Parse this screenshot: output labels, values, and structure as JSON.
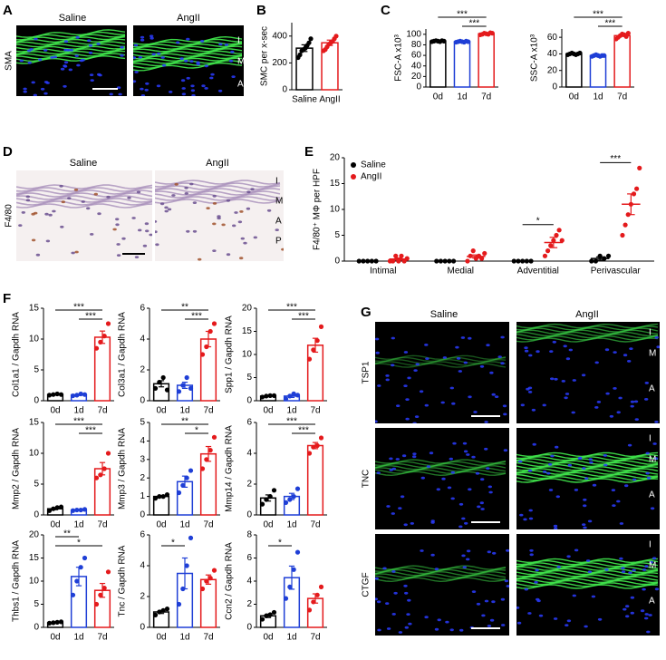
{
  "panel_letters": [
    "A",
    "B",
    "C",
    "D",
    "E",
    "F",
    "G"
  ],
  "images": {
    "A": {
      "columns": [
        "Saline",
        "AngII"
      ],
      "rows": [
        "SMA"
      ],
      "layers": [
        "I",
        "M",
        "A"
      ]
    },
    "D": {
      "columns": [
        "Saline",
        "AngII"
      ],
      "rows": [
        "F4/80"
      ],
      "layers": [
        "I",
        "M",
        "A",
        "P"
      ]
    },
    "G": {
      "columns": [
        "Saline",
        "AngII"
      ],
      "rows": [
        "TSP1",
        "TNC",
        "CTGF"
      ],
      "layers": [
        "I",
        "M",
        "A"
      ]
    }
  },
  "chart_data": [
    {
      "type": "bar",
      "ylabel": "SMC per x-sec",
      "categories": [
        "Saline",
        "AngII"
      ],
      "colors": [
        "#000000",
        "#e41a1c"
      ],
      "values": [
        310,
        350
      ],
      "errors": [
        25,
        20
      ],
      "points": [
        [
          240,
          260,
          290,
          300,
          310,
          330,
          350,
          380
        ],
        [
          290,
          300,
          320,
          340,
          350,
          360,
          380,
          400
        ]
      ],
      "ylim": [
        0,
        500
      ],
      "yticks": [
        0,
        200,
        400
      ],
      "significance": []
    },
    {
      "type": "bar",
      "ylabel": "FSC-A x10³",
      "categories": [
        "0d",
        "1d",
        "7d"
      ],
      "colors": [
        "#000000",
        "#1f3fd6",
        "#e41a1c"
      ],
      "values": [
        87,
        86,
        101
      ],
      "errors": [
        0.5,
        0.4,
        0.6
      ],
      "points": [
        [
          86,
          87,
          88,
          87,
          86,
          88,
          87
        ],
        [
          85,
          86,
          87,
          86,
          85,
          87,
          86
        ],
        [
          99,
          100,
          102,
          101,
          100,
          103,
          102
        ]
      ],
      "ylim": [
        0,
        110
      ],
      "yticks": [
        0,
        20,
        40,
        60,
        80,
        100
      ],
      "significance": [
        {
          "from": "1d",
          "to": "7d",
          "label": "***"
        },
        {
          "from": "0d",
          "to": "7d",
          "label": "***"
        }
      ]
    },
    {
      "type": "bar",
      "ylabel": "SSC-A x10³",
      "categories": [
        "0d",
        "1d",
        "7d"
      ],
      "colors": [
        "#000000",
        "#1f3fd6",
        "#e41a1c"
      ],
      "values": [
        40,
        38,
        62
      ],
      "errors": [
        0.3,
        0.3,
        0.9
      ],
      "points": [
        [
          39,
          40,
          41,
          40,
          39,
          40,
          41
        ],
        [
          37,
          38,
          39,
          38,
          37,
          38,
          38
        ],
        [
          58,
          60,
          62,
          64,
          63,
          61,
          65
        ]
      ],
      "ylim": [
        0,
        70
      ],
      "yticks": [
        0,
        20,
        40,
        60
      ],
      "significance": [
        {
          "from": "1d",
          "to": "7d",
          "label": "***"
        },
        {
          "from": "0d",
          "to": "7d",
          "label": "***"
        }
      ]
    },
    {
      "type": "dot",
      "ylabel": "F4/80⁺ MΦ per HPF",
      "categories": [
        "Intimal",
        "Medial",
        "Adventitial",
        "Perivascular"
      ],
      "series": [
        {
          "name": "Saline",
          "color": "#000000",
          "values": [
            0,
            0,
            0,
            0.5
          ],
          "errors": [
            0,
            0,
            0,
            0.3
          ],
          "points": [
            [
              0,
              0,
              0,
              0,
              0
            ],
            [
              0,
              0,
              0,
              0,
              0
            ],
            [
              0,
              0,
              0,
              0,
              0
            ],
            [
              0,
              0,
              1,
              0.5,
              1
            ]
          ]
        },
        {
          "name": "AngII",
          "color": "#e41a1c",
          "values": [
            0.4,
            0.9,
            3.6,
            11
          ],
          "errors": [
            0.2,
            0.3,
            1,
            2
          ],
          "points": [
            [
              0,
              0,
              1,
              0,
              1,
              0,
              0.5
            ],
            [
              0,
              1,
              2,
              0.5,
              1,
              0.5,
              1.5
            ],
            [
              1,
              2,
              3,
              4,
              5,
              6,
              4
            ],
            [
              5,
              7,
              9,
              11,
              13,
              14,
              18
            ]
          ]
        }
      ],
      "ylim": [
        0,
        20
      ],
      "yticks": [
        0,
        5,
        10,
        15,
        20
      ],
      "legend": "upper left",
      "significance": [
        {
          "category": "Adventitial",
          "label": "*"
        },
        {
          "category": "Perivascular",
          "label": "***"
        }
      ]
    },
    {
      "type": "bar",
      "ylabel": "Col1a1 / Gapdh RNA",
      "categories": [
        "0d",
        "1d",
        "7d"
      ],
      "colors": [
        "#000000",
        "#1f3fd6",
        "#e41a1c"
      ],
      "values": [
        1,
        0.95,
        10.3
      ],
      "errors": [
        0.1,
        0.1,
        1
      ],
      "points": [
        [
          0.9,
          1,
          1.1,
          1
        ],
        [
          0.8,
          0.9,
          1.1,
          1
        ],
        [
          8.5,
          9.5,
          10.5,
          12.5
        ]
      ],
      "ylim": [
        0,
        15
      ],
      "yticks": [
        0,
        5,
        10,
        15
      ],
      "significance": [
        {
          "from": "1d",
          "to": "7d",
          "label": "***"
        },
        {
          "from": "0d",
          "to": "7d",
          "label": "***"
        }
      ]
    },
    {
      "type": "bar",
      "ylabel": "Col3a1 / Gapdh RNA",
      "categories": [
        "0d",
        "1d",
        "7d"
      ],
      "colors": [
        "#000000",
        "#1f3fd6",
        "#e41a1c"
      ],
      "values": [
        1.1,
        1.0,
        4.0
      ],
      "errors": [
        0.2,
        0.2,
        0.5
      ],
      "points": [
        [
          0.8,
          1.2,
          1.5,
          0.7
        ],
        [
          0.6,
          1.0,
          1.5,
          0.8
        ],
        [
          3,
          3.5,
          4.5,
          5
        ]
      ],
      "ylim": [
        0,
        6
      ],
      "yticks": [
        0,
        2,
        4,
        6
      ],
      "significance": [
        {
          "from": "1d",
          "to": "7d",
          "label": "***"
        },
        {
          "from": "0d",
          "to": "7d",
          "label": "**"
        }
      ]
    },
    {
      "type": "bar",
      "ylabel": "Spp1 / Gapdh RNA",
      "categories": [
        "0d",
        "1d",
        "7d"
      ],
      "colors": [
        "#000000",
        "#1f3fd6",
        "#e41a1c"
      ],
      "values": [
        1,
        1,
        12
      ],
      "errors": [
        0.1,
        0.3,
        1.5
      ],
      "points": [
        [
          0.8,
          1,
          1.1,
          1.1
        ],
        [
          0.4,
          1,
          1.5,
          1.2
        ],
        [
          9,
          11,
          13,
          16
        ]
      ],
      "ylim": [
        0,
        20
      ],
      "yticks": [
        0,
        5,
        10,
        15,
        20
      ],
      "significance": [
        {
          "from": "1d",
          "to": "7d",
          "label": "***"
        },
        {
          "from": "0d",
          "to": "7d",
          "label": "***"
        }
      ]
    },
    {
      "type": "bar",
      "ylabel": "Mmp2 / Gapdh RNA",
      "categories": [
        "0d",
        "1d",
        "7d"
      ],
      "colors": [
        "#000000",
        "#1f3fd6",
        "#e41a1c"
      ],
      "values": [
        1,
        0.8,
        7.5
      ],
      "errors": [
        0.15,
        0.05,
        1
      ],
      "points": [
        [
          0.7,
          1,
          1.2,
          1.3
        ],
        [
          0.7,
          0.8,
          0.8,
          0.9
        ],
        [
          6,
          6.5,
          7.5,
          10
        ]
      ],
      "ylim": [
        0,
        15
      ],
      "yticks": [
        0,
        5,
        10,
        15
      ],
      "significance": [
        {
          "from": "1d",
          "to": "7d",
          "label": "***"
        },
        {
          "from": "0d",
          "to": "7d",
          "label": "***"
        }
      ]
    },
    {
      "type": "bar",
      "ylabel": "Mmp3 / Gapdh RNA",
      "categories": [
        "0d",
        "1d",
        "7d"
      ],
      "colors": [
        "#000000",
        "#1f3fd6",
        "#e41a1c"
      ],
      "values": [
        1,
        1.8,
        3.3
      ],
      "errors": [
        0.05,
        0.3,
        0.4
      ],
      "points": [
        [
          0.9,
          1,
          1,
          1.1
        ],
        [
          1.2,
          1.6,
          2,
          2.4
        ],
        [
          2.5,
          3,
          3.5,
          4.2
        ]
      ],
      "ylim": [
        0,
        5
      ],
      "yticks": [
        0,
        1,
        2,
        3,
        4,
        5
      ],
      "significance": [
        {
          "from": "1d",
          "to": "7d",
          "label": "*"
        },
        {
          "from": "0d",
          "to": "7d",
          "label": "**"
        }
      ]
    },
    {
      "type": "bar",
      "ylabel": "Mmp14 / Gapdh RNA",
      "categories": [
        "0d",
        "1d",
        "7d"
      ],
      "colors": [
        "#000000",
        "#1f3fd6",
        "#e41a1c"
      ],
      "values": [
        1.1,
        1.2,
        4.5
      ],
      "errors": [
        0.2,
        0.2,
        0.2
      ],
      "points": [
        [
          0.7,
          1,
          1.2,
          1.6
        ],
        [
          0.8,
          1,
          1.2,
          1.7
        ],
        [
          4,
          4.4,
          4.5,
          5
        ]
      ],
      "ylim": [
        0,
        6
      ],
      "yticks": [
        0,
        2,
        4,
        6
      ],
      "significance": [
        {
          "from": "1d",
          "to": "7d",
          "label": "***"
        },
        {
          "from": "0d",
          "to": "7d",
          "label": "***"
        }
      ]
    },
    {
      "type": "bar",
      "ylabel": "Thbs1 / Gapdh RNA",
      "categories": [
        "0d",
        "1d",
        "7d"
      ],
      "colors": [
        "#000000",
        "#1f3fd6",
        "#e41a1c"
      ],
      "values": [
        1,
        11,
        8
      ],
      "errors": [
        0.05,
        2,
        1.5
      ],
      "points": [
        [
          0.9,
          1,
          1.1,
          1.2
        ],
        [
          7,
          10,
          13,
          15
        ],
        [
          5,
          7,
          8.5,
          12
        ]
      ],
      "ylim": [
        0,
        20
      ],
      "yticks": [
        0,
        5,
        10,
        15,
        20
      ],
      "significance": [
        {
          "from": "0d",
          "to": "7d",
          "label": "*"
        },
        {
          "from": "0d",
          "to": "1d",
          "label": "**"
        }
      ]
    },
    {
      "type": "bar",
      "ylabel": "Tnc / Gapdh RNA",
      "categories": [
        "0d",
        "1d",
        "7d"
      ],
      "colors": [
        "#000000",
        "#1f3fd6",
        "#e41a1c"
      ],
      "values": [
        1,
        3.5,
        3.1
      ],
      "errors": [
        0.1,
        1,
        0.3
      ],
      "points": [
        [
          0.8,
          1,
          1.1,
          1.2
        ],
        [
          1.5,
          2.5,
          4,
          5.8
        ],
        [
          2.5,
          3,
          3.2,
          3.7
        ]
      ],
      "ylim": [
        0,
        6
      ],
      "yticks": [
        0,
        2,
        4,
        6
      ],
      "significance": [
        {
          "from": "0d",
          "to": "1d",
          "label": "*"
        }
      ]
    },
    {
      "type": "bar",
      "ylabel": "Ccn2 / Gapdh RNA",
      "categories": [
        "0d",
        "1d",
        "7d"
      ],
      "colors": [
        "#000000",
        "#1f3fd6",
        "#e41a1c"
      ],
      "values": [
        1,
        4.3,
        2.5
      ],
      "errors": [
        0.15,
        1,
        0.4
      ],
      "points": [
        [
          0.7,
          1,
          1.1,
          1.3
        ],
        [
          2.5,
          3.5,
          5,
          6.5
        ],
        [
          1.5,
          2.2,
          2.8,
          3.5
        ]
      ],
      "ylim": [
        0,
        8
      ],
      "yticks": [
        0,
        2,
        4,
        6,
        8
      ],
      "significance": [
        {
          "from": "0d",
          "to": "1d",
          "label": "*"
        }
      ]
    }
  ]
}
